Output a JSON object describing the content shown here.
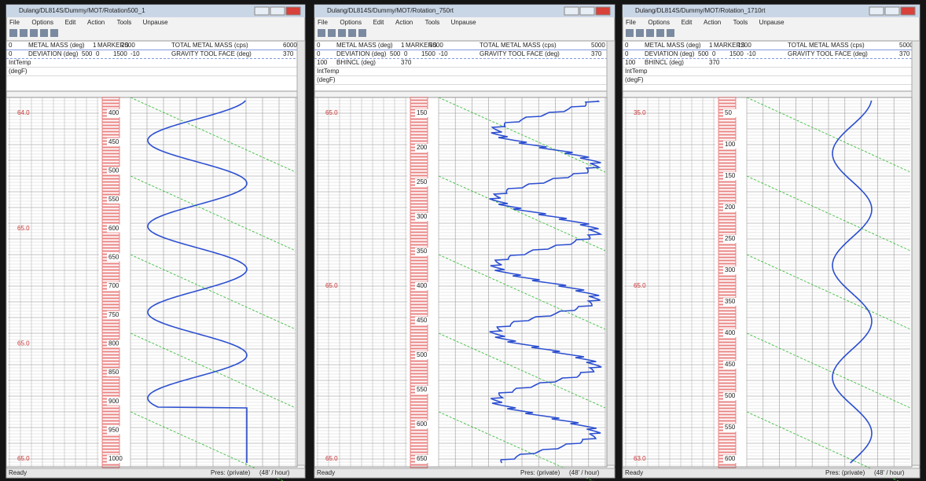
{
  "windows": [
    {
      "title": "Dulang/DL814S/Dummy/MOT/Rotation500_1",
      "menu": [
        "File",
        "Options",
        "Edit",
        "Action",
        "Tools",
        "Unpause"
      ],
      "header_rows": [
        [
          "0",
          "METAL MASS (deg)",
          "1",
          "MARKERS",
          "2000",
          "TOTAL METAL MASS (cps)",
          "6000"
        ],
        [
          "0",
          "DEVIATION (deg)",
          "500",
          "0",
          "1500",
          "-10",
          "GRAVITY TOOL FACE (deg)",
          "370"
        ],
        [
          "IntTemp"
        ],
        [
          "(degF)"
        ]
      ],
      "depth_labels": [
        "400",
        "450",
        "500",
        "550",
        "600",
        "650",
        "700",
        "750",
        "800",
        "850",
        "900",
        "950",
        "1000"
      ],
      "temp_labels": [
        "64.0",
        "65.0",
        "65.0",
        "65.0"
      ],
      "status": "Ready",
      "press": "Pres: (private)",
      "speed": "(48' / hour)"
    },
    {
      "title": "Dulang/DL814S/Dummy/MOT/Rotation_750rt",
      "menu": [
        "File",
        "Options",
        "Edit",
        "Action",
        "Tools",
        "Unpause"
      ],
      "header_rows": [
        [
          "0",
          "METAL MASS (deg)",
          "1",
          "MARKERS",
          "5000",
          "TOTAL METAL MASS (cps)",
          "5000"
        ],
        [
          "0",
          "DEVIATION (deg)",
          "500",
          "0",
          "1500",
          "-10",
          "GRAVITY TOOL FACE (deg)",
          "370"
        ],
        [
          "100",
          "BHINCL (deg)",
          "370"
        ],
        [
          "IntTemp"
        ],
        [
          "(degF)"
        ]
      ],
      "depth_labels": [
        "150",
        "200",
        "250",
        "300",
        "350",
        "400",
        "450",
        "500",
        "550",
        "600",
        "650"
      ],
      "temp_labels": [
        "65.0",
        "65.0",
        "65.0"
      ],
      "status": "Ready",
      "press": "Pres: (private)",
      "speed": "(48' / hour)"
    },
    {
      "title": "Dulang/DL814S/Dummy/MOT/Rotation_1710rt",
      "menu": [
        "File",
        "Options",
        "Edit",
        "Action",
        "Tools",
        "Unpause"
      ],
      "header_rows": [
        [
          "0",
          "METAL MASS (deg)",
          "1",
          "MARKERS",
          "1200",
          "TOTAL METAL MASS (cps)",
          "5000"
        ],
        [
          "0",
          "DEVIATION (deg)",
          "500",
          "0",
          "1500",
          "-10",
          "GRAVITY TOOL FACE (deg)",
          "370"
        ],
        [
          "100",
          "BHINCL (deg)",
          "370"
        ],
        [
          "IntTemp"
        ],
        [
          "(degF)"
        ]
      ],
      "depth_labels": [
        "50",
        "100",
        "150",
        "200",
        "250",
        "300",
        "350",
        "400",
        "450",
        "500",
        "550",
        "600"
      ],
      "temp_labels": [
        "35.0",
        "65.0",
        "63.0"
      ],
      "status": "Ready",
      "press": "Pres: (private)",
      "speed": "(48' / hour)"
    }
  ]
}
